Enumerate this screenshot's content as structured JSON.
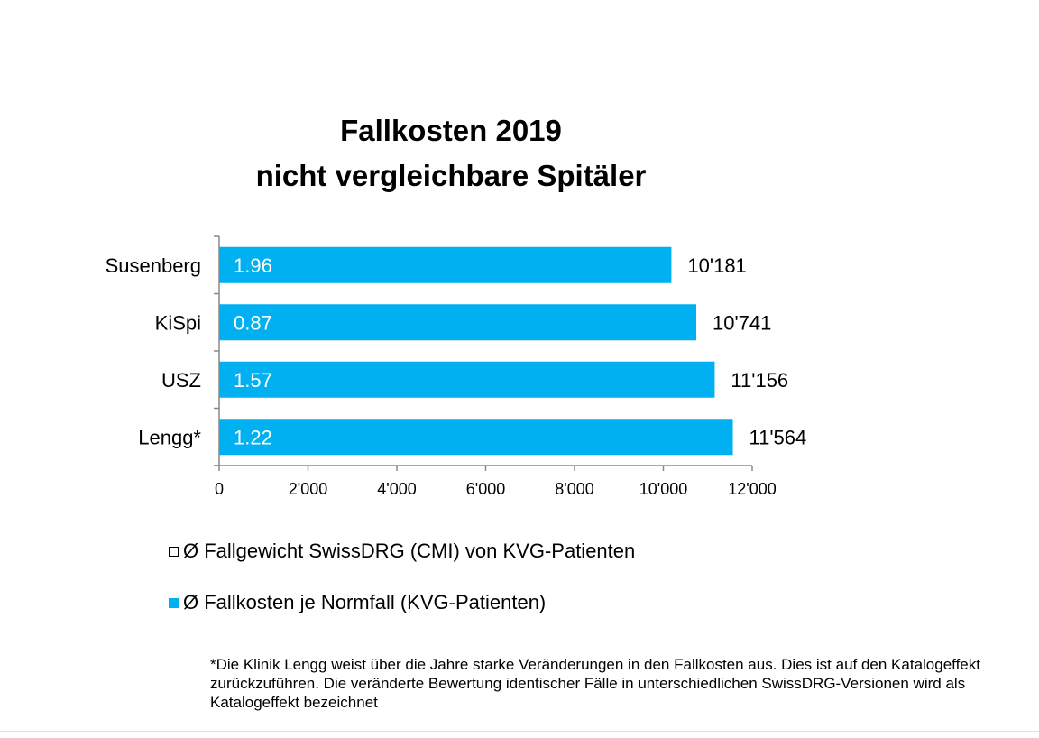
{
  "chart_data": {
    "type": "bar",
    "orientation": "horizontal",
    "title": [
      "Fallkosten 2019",
      "nicht vergleichbare Spitäler"
    ],
    "categories": [
      "Susenberg",
      "KiSpi",
      "USZ",
      "Lengg*"
    ],
    "series": [
      {
        "name": "Ø Fallkosten je Normfall (KVG-Patienten)",
        "color": "#00B0F0",
        "values": [
          10181,
          10741,
          11156,
          11564
        ],
        "labels": [
          "10'181",
          "10'741",
          "11'156",
          "11'564"
        ]
      },
      {
        "name": "Ø Fallgewicht SwissDRG (CMI) von KVG-Patienten",
        "color": "#FFFFFF",
        "values": [
          1.96,
          0.87,
          1.57,
          1.22
        ],
        "labels": [
          "1.96",
          "0.87",
          "1.57",
          "1.22"
        ]
      }
    ],
    "xlim": [
      0,
      12000
    ],
    "xticks": [
      0,
      2000,
      4000,
      6000,
      8000,
      10000,
      12000
    ],
    "xtick_labels": [
      "0",
      "2'000",
      "4'000",
      "6'000",
      "8'000",
      "10'000",
      "12'000"
    ],
    "grid": false,
    "legend_position": "bottom"
  },
  "legend": [
    {
      "label": "Ø Fallgewicht SwissDRG (CMI) von KVG-Patienten",
      "color": "#FFFFFF"
    },
    {
      "label": "Ø Fallkosten je Normfall (KVG-Patienten)",
      "color": "#00B0F0"
    }
  ],
  "footnote": "*Die Klinik Lengg weist über die Jahre starke Veränderungen in den Fallkosten aus. Dies ist auf den Katalogeffekt zurückzuführen. Die veränderte Bewertung identischer Fälle in unterschiedlichen SwissDRG-Versionen wird als Katalogeffekt bezeichnet"
}
